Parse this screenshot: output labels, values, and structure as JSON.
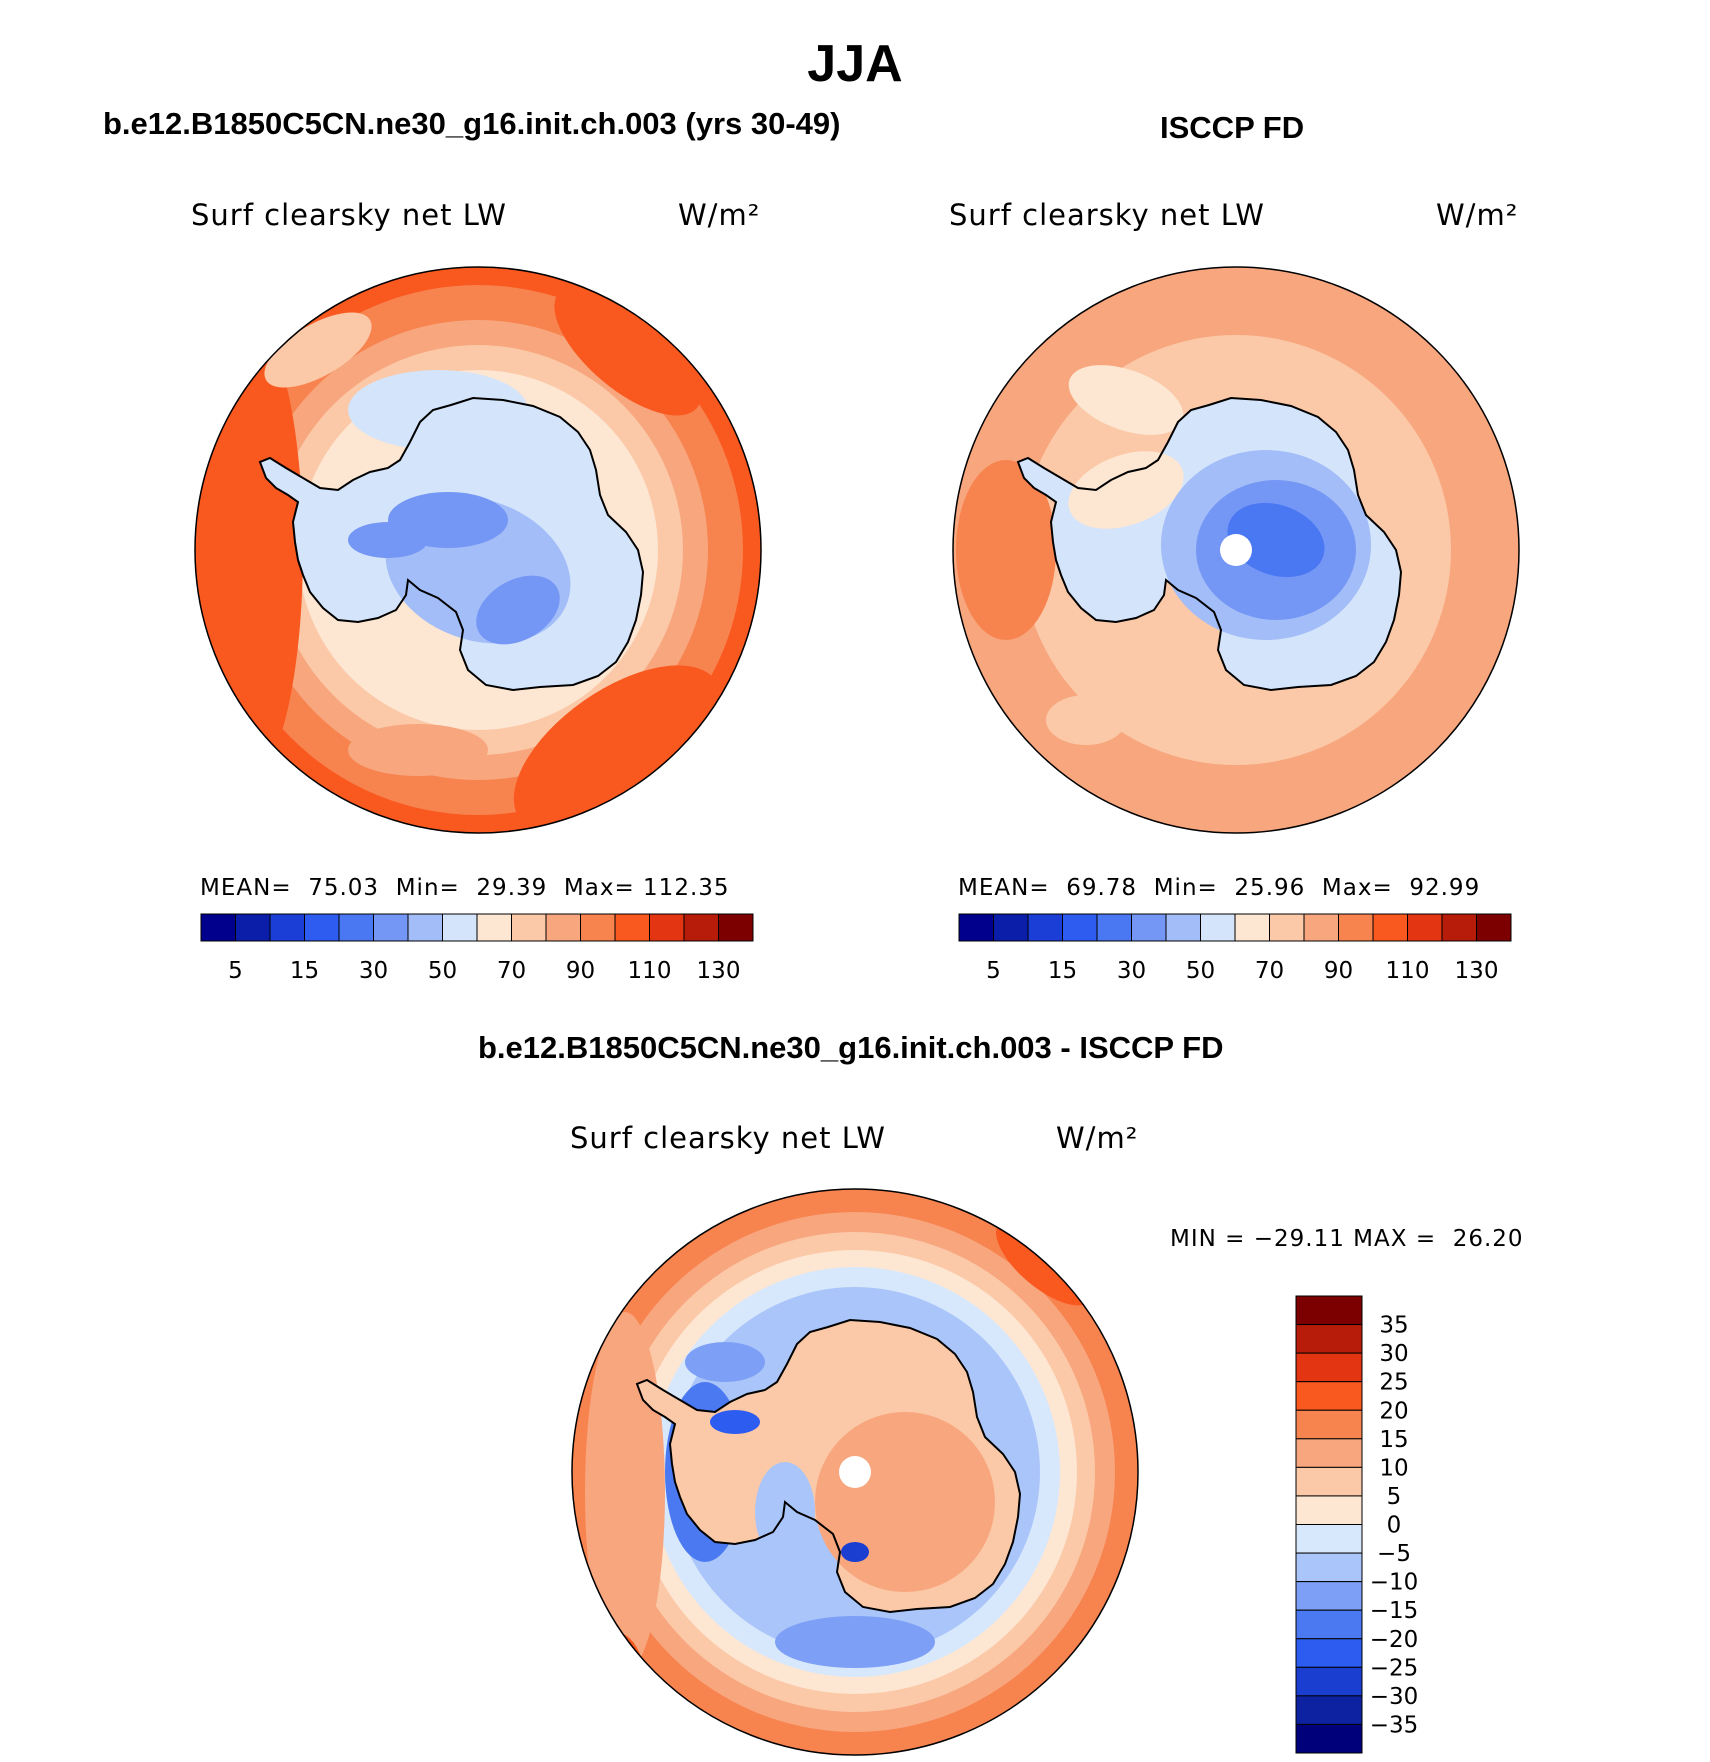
{
  "title": "JJA",
  "panels": [
    {
      "id": "model",
      "heading": "b.e12.B1850C5CN.ne30_g16.init.ch.003 (yrs 30-49)",
      "variable": "Surf clearsky net LW",
      "units": "W/m²",
      "stats": {
        "mean_label": "MEAN=",
        "mean": "75.03",
        "min_label": "Min=",
        "min": "29.39",
        "max_label": "Max=",
        "max": "112.35"
      }
    },
    {
      "id": "obs",
      "heading": "ISCCP FD",
      "variable": "Surf clearsky net LW",
      "units": "W/m²",
      "stats": {
        "mean_label": "MEAN=",
        "mean": "69.78",
        "min_label": "Min=",
        "min": "25.96",
        "max_label": "Max=",
        "max": "92.99"
      }
    },
    {
      "id": "diff",
      "heading": "b.e12.B1850C5CN.ne30_g16.init.ch.003 - ISCCP FD",
      "variable": "Surf clearsky net LW",
      "units": "W/m²",
      "stats": {
        "min_label": "MIN =",
        "min": "−29.11",
        "max_label": "MAX =",
        "max": "26.20"
      }
    }
  ],
  "colorbar_abs": {
    "colors": [
      "#00008c",
      "#0a1eaa",
      "#1b3fd6",
      "#2e5cf0",
      "#4a78f2",
      "#7496f4",
      "#a2bdf8",
      "#d4e4fb",
      "#fde6d2",
      "#fbc9a8",
      "#f8a67e",
      "#f7834f",
      "#f9581f",
      "#e33512",
      "#b71c0a",
      "#7d0000"
    ],
    "tick_labels": [
      "5",
      "15",
      "30",
      "50",
      "70",
      "90",
      "110",
      "130"
    ]
  },
  "colorbar_diff": {
    "colors": [
      "#00007a",
      "#0c22a0",
      "#1a3ecf",
      "#2c5df0",
      "#4a79f2",
      "#7d9ff6",
      "#aac5f9",
      "#d8e8fc",
      "#fde6d2",
      "#fbc9a8",
      "#f8a67e",
      "#f7834f",
      "#f9581f",
      "#e33512",
      "#b71c0a",
      "#7d0000"
    ],
    "tick_labels": [
      "35",
      "30",
      "25",
      "20",
      "15",
      "10",
      "5",
      "0",
      "−5",
      "−10",
      "−15",
      "−20",
      "−25",
      "−30",
      "−35"
    ]
  },
  "colors": {
    "coastline": "#000000",
    "pole_hole": "#ffffff"
  }
}
